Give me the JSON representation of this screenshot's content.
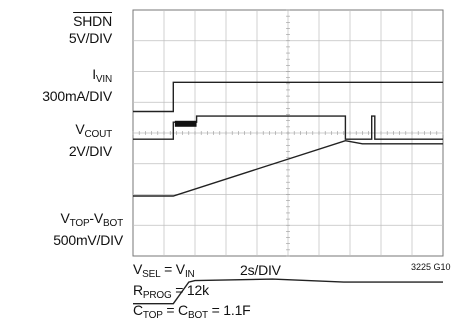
{
  "chart_data": {
    "type": "line",
    "traces": [
      {
        "name": "SHDN",
        "overline": true,
        "scale": "5V/DIV",
        "points": [
          [
            0,
            0.7
          ],
          [
            1.3,
            0.7
          ],
          [
            1.3,
            1.65
          ],
          [
            10,
            1.65
          ]
        ]
      },
      {
        "name": "I",
        "sub": "VIN",
        "scale": "300mA/DIV",
        "points": [
          [
            0,
            -0.2
          ],
          [
            1.3,
            -0.2
          ],
          [
            1.3,
            0.35
          ],
          [
            2.05,
            0.35
          ],
          [
            2.05,
            0.55
          ],
          [
            6.85,
            0.55
          ],
          [
            6.85,
            -0.2
          ],
          [
            7.7,
            -0.2
          ],
          [
            7.7,
            0.55
          ],
          [
            7.8,
            0.55
          ],
          [
            7.8,
            -0.2
          ],
          [
            10,
            -0.2
          ]
        ],
        "marker": {
          "x0": 1.35,
          "x1": 2.05,
          "y": 0.3
        }
      },
      {
        "name": "V",
        "sub": "COUT",
        "scale": "2V/DIV",
        "points": [
          [
            0,
            -2.05
          ],
          [
            1.3,
            -2.05
          ],
          [
            6.85,
            -0.25
          ],
          [
            7.4,
            -0.35
          ],
          [
            10,
            -0.35
          ]
        ]
      },
      {
        "name": "V",
        "sub": "TOP",
        "name2": "-V",
        "sub2": "BOT",
        "scale": "500mV/DIV",
        "points": [
          [
            0,
            -5.55
          ],
          [
            1.3,
            -5.55
          ],
          [
            1.8,
            -4.85
          ],
          [
            2.0,
            -4.8
          ],
          [
            4.5,
            -4.75
          ],
          [
            6.8,
            -4.85
          ],
          [
            10,
            -4.85
          ]
        ]
      }
    ],
    "time_per_div": "2s/DIV",
    "conditions": [
      {
        "name": "V",
        "sub": "SEL",
        "rest": " = V",
        "sub2": "IN"
      },
      {
        "name": "R",
        "sub": "PROG",
        "rest": " = 12k"
      },
      {
        "name": "C",
        "sub": "TOP",
        "rest": " = C",
        "sub2": "BOT",
        "tail": " = 1.1F"
      }
    ],
    "figure_code": "3225 G10"
  }
}
